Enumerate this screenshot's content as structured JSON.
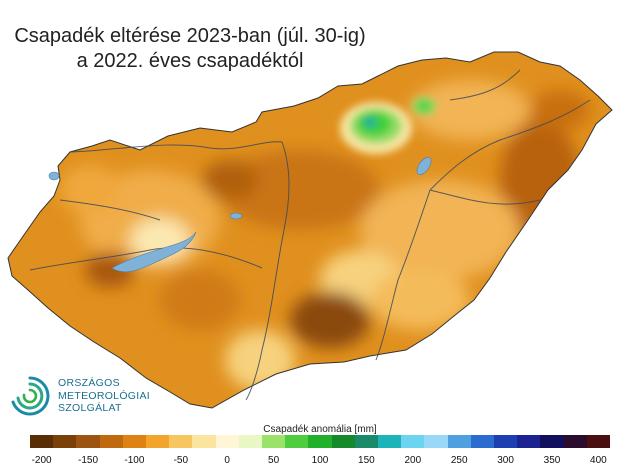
{
  "title": {
    "line1": "Csapadék eltérése 2023-ban (júl. 30-ig)",
    "line2": "a 2022. éves csapadéktól"
  },
  "logo": {
    "line1": "ORSZÁGOS",
    "line2": "METEOROLÓGIAI",
    "line3": "SZOLGÁLAT",
    "color": "#1a6f8f"
  },
  "legend": {
    "title": "Csapadék anomália [mm]",
    "ticks": [
      "-200",
      "-150",
      "-100",
      "-50",
      "0",
      "50",
      "100",
      "150",
      "200",
      "250",
      "300",
      "350",
      "400"
    ],
    "colors": [
      "#5a2e05",
      "#7a4008",
      "#9c5410",
      "#c06a0f",
      "#de8214",
      "#f2a42c",
      "#f8c660",
      "#fbe59e",
      "#fff6d8",
      "#e8f7c4",
      "#9be26a",
      "#50cd3e",
      "#22b02a",
      "#168a2a",
      "#1a8a6a",
      "#1cb4b8",
      "#6cd4f0",
      "#9ad8f8",
      "#4fa0e0",
      "#2a6cd0",
      "#1e3fb0",
      "#1a2390",
      "#12105e",
      "#2a0c2c",
      "#4a1010"
    ]
  },
  "map": {
    "region": "Magyarország",
    "lakes": [
      "Balaton",
      "Velencei-tó",
      "Tisza-tó",
      "Fertő"
    ],
    "wet_area_color": "#3ccf3c",
    "dry_base_color": "#e0901e"
  }
}
